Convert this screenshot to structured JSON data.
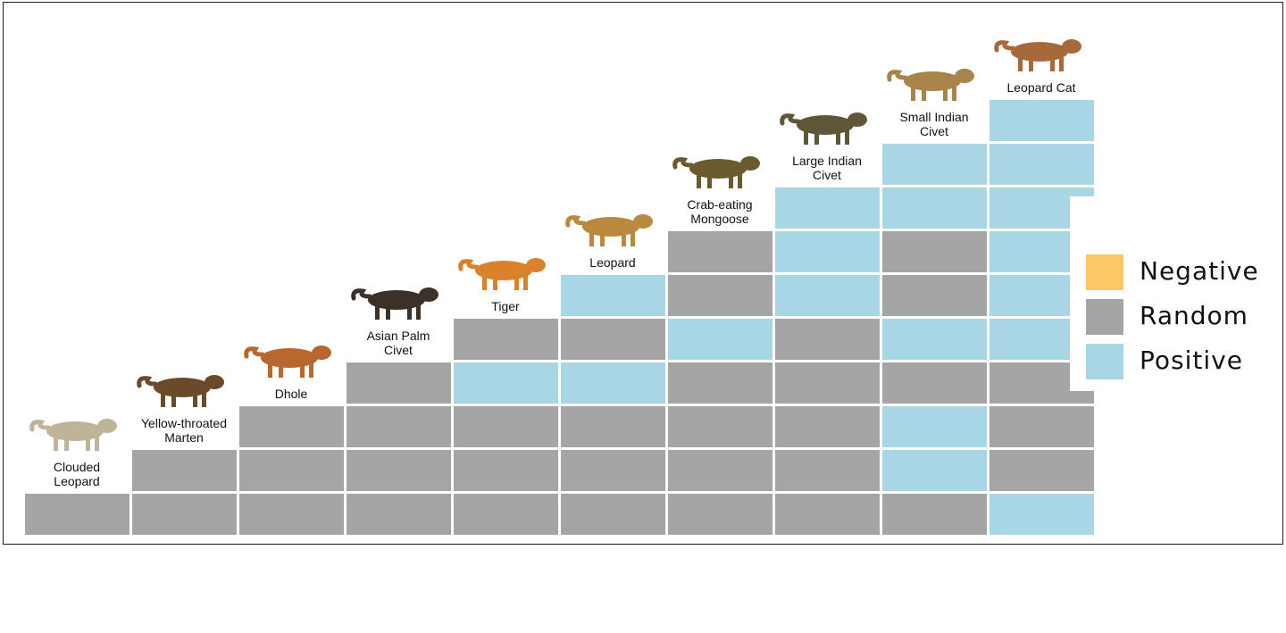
{
  "colors": {
    "negative": "#fbc865",
    "random": "#a5a5a5",
    "positive": "#a9d6e5"
  },
  "legend": [
    {
      "key": "negative",
      "label": "Negative"
    },
    {
      "key": "random",
      "label": "Random"
    },
    {
      "key": "positive",
      "label": "Positive"
    }
  ],
  "species": [
    {
      "name": "Clouded Leopard",
      "lines": [
        "Clouded",
        "Leopard"
      ],
      "icon": "clouded-leopard-icon",
      "cells": [
        "random"
      ]
    },
    {
      "name": "Yellow-throated Marten",
      "lines": [
        "Yellow-throated",
        "Marten"
      ],
      "icon": "marten-icon",
      "cells": [
        "random",
        "random"
      ]
    },
    {
      "name": "Dhole",
      "lines": [
        "Dhole"
      ],
      "icon": "dhole-icon",
      "cells": [
        "random",
        "random",
        "random"
      ]
    },
    {
      "name": "Asian Palm Civet",
      "lines": [
        "Asian Palm",
        "Civet"
      ],
      "icon": "palm-civet-icon",
      "cells": [
        "random",
        "random",
        "random",
        "random"
      ]
    },
    {
      "name": "Tiger",
      "lines": [
        "Tiger"
      ],
      "icon": "tiger-icon",
      "cells": [
        "random",
        "random",
        "random",
        "positive",
        "random"
      ]
    },
    {
      "name": "Leopard",
      "lines": [
        "Leopard"
      ],
      "icon": "leopard-icon",
      "cells": [
        "random",
        "random",
        "random",
        "positive",
        "random",
        "positive"
      ]
    },
    {
      "name": "Crab-eating Mongoose",
      "lines": [
        "Crab-eating",
        "Mongoose"
      ],
      "icon": "mongoose-icon",
      "cells": [
        "random",
        "random",
        "random",
        "random",
        "positive",
        "random",
        "random"
      ]
    },
    {
      "name": "Large Indian Civet",
      "lines": [
        "Large Indian",
        "Civet"
      ],
      "icon": "large-civet-icon",
      "cells": [
        "random",
        "random",
        "random",
        "random",
        "random",
        "positive",
        "positive",
        "positive"
      ]
    },
    {
      "name": "Small Indian Civet",
      "lines": [
        "Small Indian",
        "Civet"
      ],
      "icon": "small-civet-icon",
      "cells": [
        "random",
        "positive",
        "positive",
        "random",
        "positive",
        "random",
        "random",
        "positive",
        "positive"
      ]
    },
    {
      "name": "Leopard Cat",
      "lines": [
        "Leopard Cat"
      ],
      "icon": "leopard-cat-icon",
      "cells": [
        "positive",
        "random",
        "random",
        "random",
        "positive",
        "positive",
        "positive",
        "positive",
        "positive",
        "positive"
      ]
    }
  ]
}
